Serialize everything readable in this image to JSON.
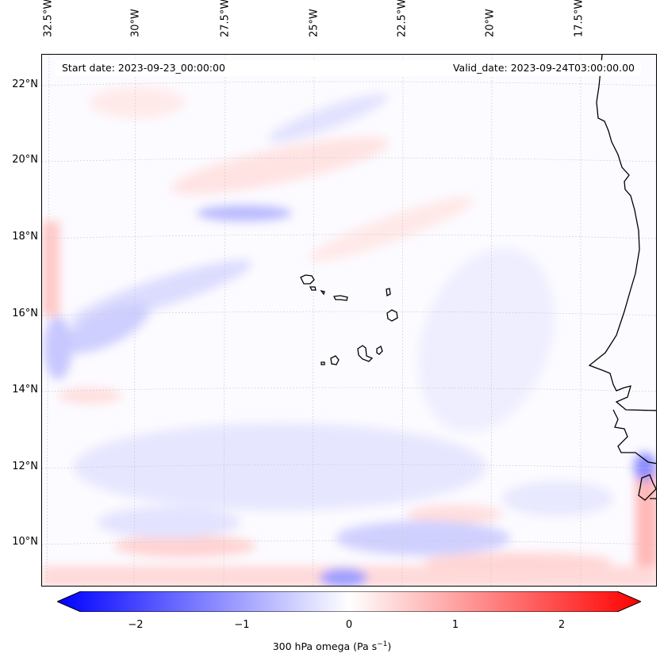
{
  "map": {
    "lon_labels": [
      "32.5°W",
      "30°W",
      "27.5°W",
      "25°W",
      "22.5°W",
      "20°W",
      "17.5°W"
    ],
    "lat_labels": [
      "22°N",
      "20°N",
      "18°N",
      "16°N",
      "14°N",
      "12°N",
      "10°N"
    ],
    "start_date": "Start date: 2023-09-23_00:00:00",
    "valid_date": "Valid_date: 2023-09-24T03:00:00.00",
    "gridlines": true,
    "coastline_color": "#000000"
  },
  "colorbar": {
    "ticks": [
      "−2",
      "−1",
      "0",
      "1",
      "2"
    ],
    "label": "300 hPa omega (Pa s",
    "label_exp": "−1",
    "label_end": ")",
    "colormap": "bwr",
    "range": [
      -2.6,
      2.6
    ],
    "low_color": "#0000ff",
    "mid_color": "#ffffff",
    "high_color": "#ff0000"
  }
}
